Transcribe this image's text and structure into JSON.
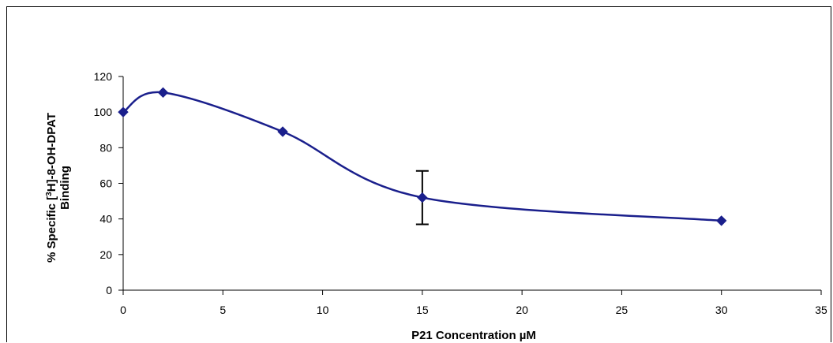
{
  "chart_data": {
    "type": "line",
    "title": "",
    "xlabel": "P21 Concentration µM",
    "ylabel_line1_prefix": "% Specific [",
    "ylabel_line1_sup": "3",
    "ylabel_line1_suffix": "H]-8-OH-DPAT",
    "ylabel_line2": "Binding",
    "xlim": [
      0,
      35
    ],
    "ylim": [
      0,
      120
    ],
    "x_ticks": [
      0,
      5,
      10,
      15,
      20,
      25,
      30,
      35
    ],
    "y_ticks": [
      0,
      20,
      40,
      60,
      80,
      100,
      120
    ],
    "grid": false,
    "legend": "none",
    "series": [
      {
        "color": "#1a1f8c",
        "x": [
          0,
          2,
          8,
          15,
          30
        ],
        "y": [
          100,
          111,
          89,
          52,
          39
        ],
        "error": [
          null,
          null,
          null,
          15,
          null
        ]
      }
    ]
  }
}
